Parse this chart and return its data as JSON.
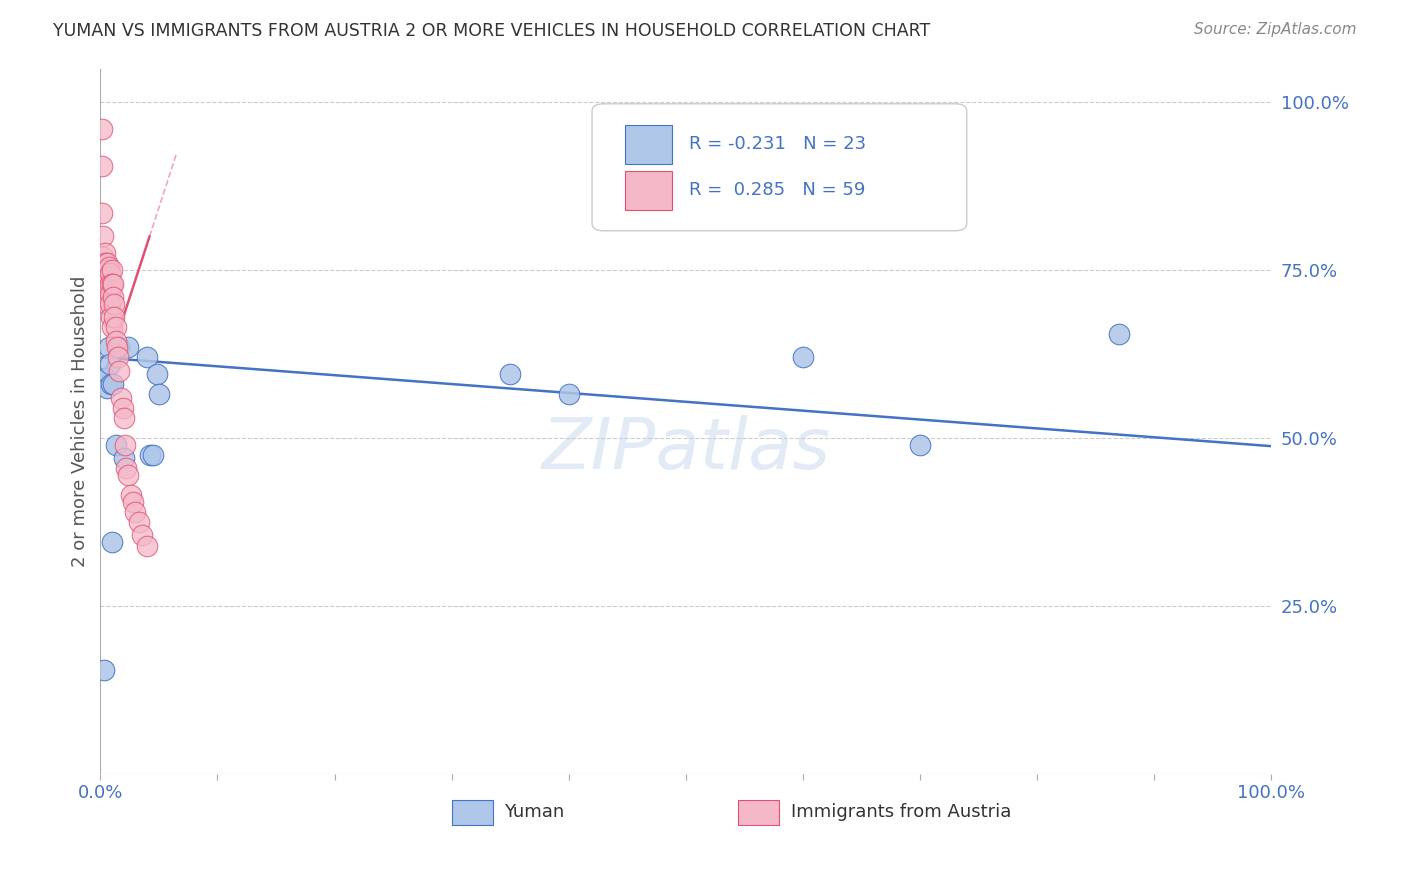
{
  "title": "YUMAN VS IMMIGRANTS FROM AUSTRIA 2 OR MORE VEHICLES IN HOUSEHOLD CORRELATION CHART",
  "source": "Source: ZipAtlas.com",
  "ylabel": "2 or more Vehicles in Household",
  "legend_label1": "Yuman",
  "legend_label2": "Immigrants from Austria",
  "R1": -0.231,
  "N1": 23,
  "R2": 0.285,
  "N2": 59,
  "color_blue": "#aec6e8",
  "color_pink": "#f4b8c8",
  "line_color_blue": "#4472c4",
  "line_color_pink": "#e05070",
  "text_color": "#4472c4",
  "background": "#ffffff",
  "xlim": [
    0.0,
    1.0
  ],
  "ylim": [
    0.0,
    1.05
  ],
  "blue_points_x": [
    0.003,
    0.004,
    0.005,
    0.006,
    0.007,
    0.008,
    0.009,
    0.01,
    0.011,
    0.013,
    0.016,
    0.02,
    0.024,
    0.04,
    0.042,
    0.045,
    0.048,
    0.05,
    0.35,
    0.4,
    0.6,
    0.7,
    0.87
  ],
  "blue_points_y": [
    0.155,
    0.59,
    0.59,
    0.575,
    0.635,
    0.61,
    0.58,
    0.345,
    0.58,
    0.49,
    0.635,
    0.47,
    0.635,
    0.62,
    0.475,
    0.475,
    0.595,
    0.565,
    0.595,
    0.565,
    0.62,
    0.49,
    0.655
  ],
  "pink_points_x": [
    0.001,
    0.001,
    0.001,
    0.002,
    0.002,
    0.002,
    0.002,
    0.002,
    0.003,
    0.003,
    0.003,
    0.003,
    0.003,
    0.004,
    0.004,
    0.004,
    0.004,
    0.005,
    0.005,
    0.005,
    0.005,
    0.006,
    0.006,
    0.006,
    0.006,
    0.006,
    0.007,
    0.007,
    0.007,
    0.007,
    0.008,
    0.008,
    0.008,
    0.008,
    0.009,
    0.01,
    0.01,
    0.01,
    0.011,
    0.011,
    0.012,
    0.012,
    0.013,
    0.013,
    0.014,
    0.015,
    0.016,
    0.018,
    0.019,
    0.02,
    0.021,
    0.022,
    0.024,
    0.026,
    0.028,
    0.03,
    0.033,
    0.036,
    0.04
  ],
  "pink_points_y": [
    0.96,
    0.905,
    0.835,
    0.8,
    0.77,
    0.76,
    0.745,
    0.73,
    0.76,
    0.75,
    0.735,
    0.72,
    0.71,
    0.775,
    0.755,
    0.73,
    0.72,
    0.76,
    0.745,
    0.73,
    0.71,
    0.76,
    0.75,
    0.735,
    0.72,
    0.7,
    0.755,
    0.74,
    0.725,
    0.705,
    0.745,
    0.73,
    0.715,
    0.7,
    0.68,
    0.75,
    0.73,
    0.665,
    0.73,
    0.71,
    0.7,
    0.68,
    0.665,
    0.645,
    0.635,
    0.62,
    0.6,
    0.56,
    0.545,
    0.53,
    0.49,
    0.455,
    0.445,
    0.415,
    0.405,
    0.39,
    0.375,
    0.355,
    0.34
  ],
  "blue_line_x": [
    0.0,
    1.0
  ],
  "blue_line_y": [
    0.62,
    0.488
  ],
  "pink_line_x": [
    0.0,
    0.042
  ],
  "pink_line_y": [
    0.575,
    0.8
  ],
  "right_ytick_vals": [
    0.25,
    0.5,
    0.75,
    1.0
  ],
  "right_ytick_labels": [
    "25.0%",
    "50.0%",
    "75.0%",
    "100.0%"
  ]
}
